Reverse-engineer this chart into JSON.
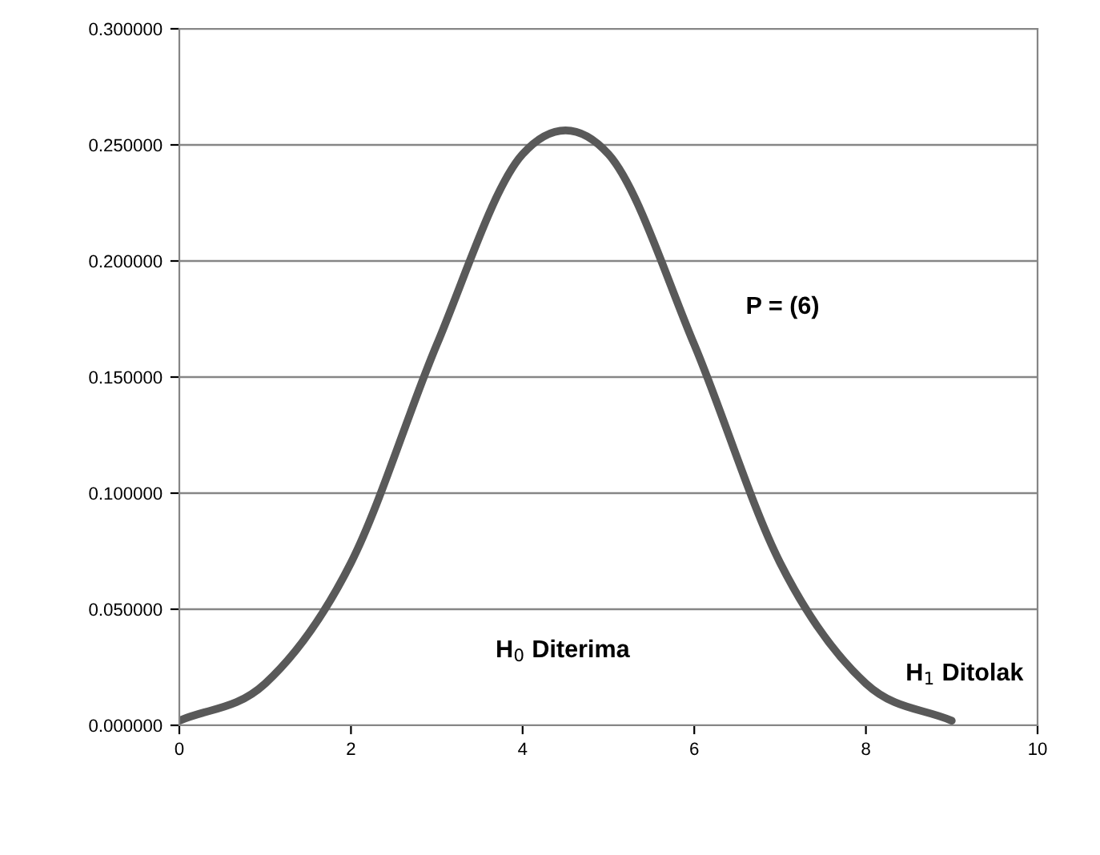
{
  "chart_data": {
    "type": "line",
    "x": [
      0,
      1,
      2,
      3,
      4,
      5,
      6,
      7,
      8,
      9
    ],
    "series": [
      {
        "color": "#595959",
        "values": [
          0.002,
          0.018,
          0.07,
          0.164,
          0.246,
          0.246,
          0.164,
          0.07,
          0.018,
          0.002
        ]
      }
    ],
    "xlim": [
      0,
      10
    ],
    "xticks": [
      0,
      2,
      4,
      6,
      8,
      10
    ],
    "ylim": [
      0,
      0.3
    ],
    "yticks": [
      {
        "value": 0,
        "label": "0.000000"
      },
      {
        "value": 0.05,
        "label": "0.050000"
      },
      {
        "value": 0.1,
        "label": "0.100000"
      },
      {
        "value": 0.15,
        "label": "0.150000"
      },
      {
        "value": 0.2,
        "label": "0.200000"
      },
      {
        "value": 0.25,
        "label": "0.250000"
      },
      {
        "value": 0.3,
        "label": "0.300000"
      }
    ],
    "grid": "y",
    "marker": "none",
    "line_style": "solid",
    "legend": false,
    "annotations": [
      "P = (6)",
      "H$_{0}$ Diterima",
      "H$_{1}$ Ditolak"
    ]
  }
}
